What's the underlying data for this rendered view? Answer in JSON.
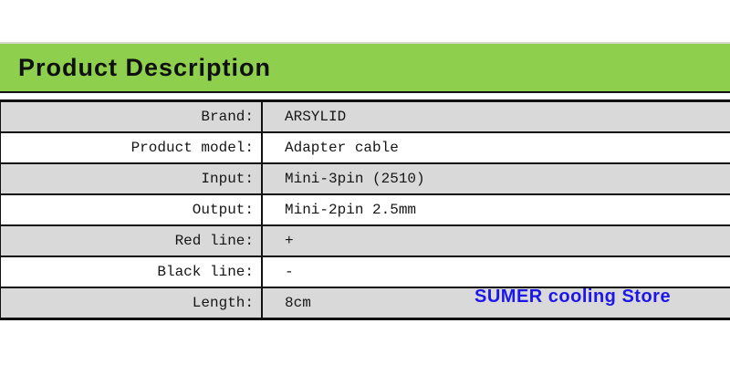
{
  "header": {
    "title": "Product Description"
  },
  "spec_table": {
    "rows": [
      {
        "label": "Brand:",
        "value": "ARSYLID"
      },
      {
        "label": "Product model:",
        "value": "Adapter cable"
      },
      {
        "label": "Input:",
        "value": "Mini-3pin (2510)"
      },
      {
        "label": "Output:",
        "value": "Mini-2pin 2.5mm"
      },
      {
        "label": "Red line:",
        "value": "+"
      },
      {
        "label": "Black line:",
        "value": "-"
      },
      {
        "label": "Length:",
        "value": "8cm"
      }
    ]
  },
  "watermark": {
    "text": "SUMER cooling Store"
  },
  "colors": {
    "header_green": "#8ed04e",
    "row_alt_gray": "#d9d9d9",
    "table_border": "#111111",
    "watermark_blue": "#1c16e8"
  }
}
